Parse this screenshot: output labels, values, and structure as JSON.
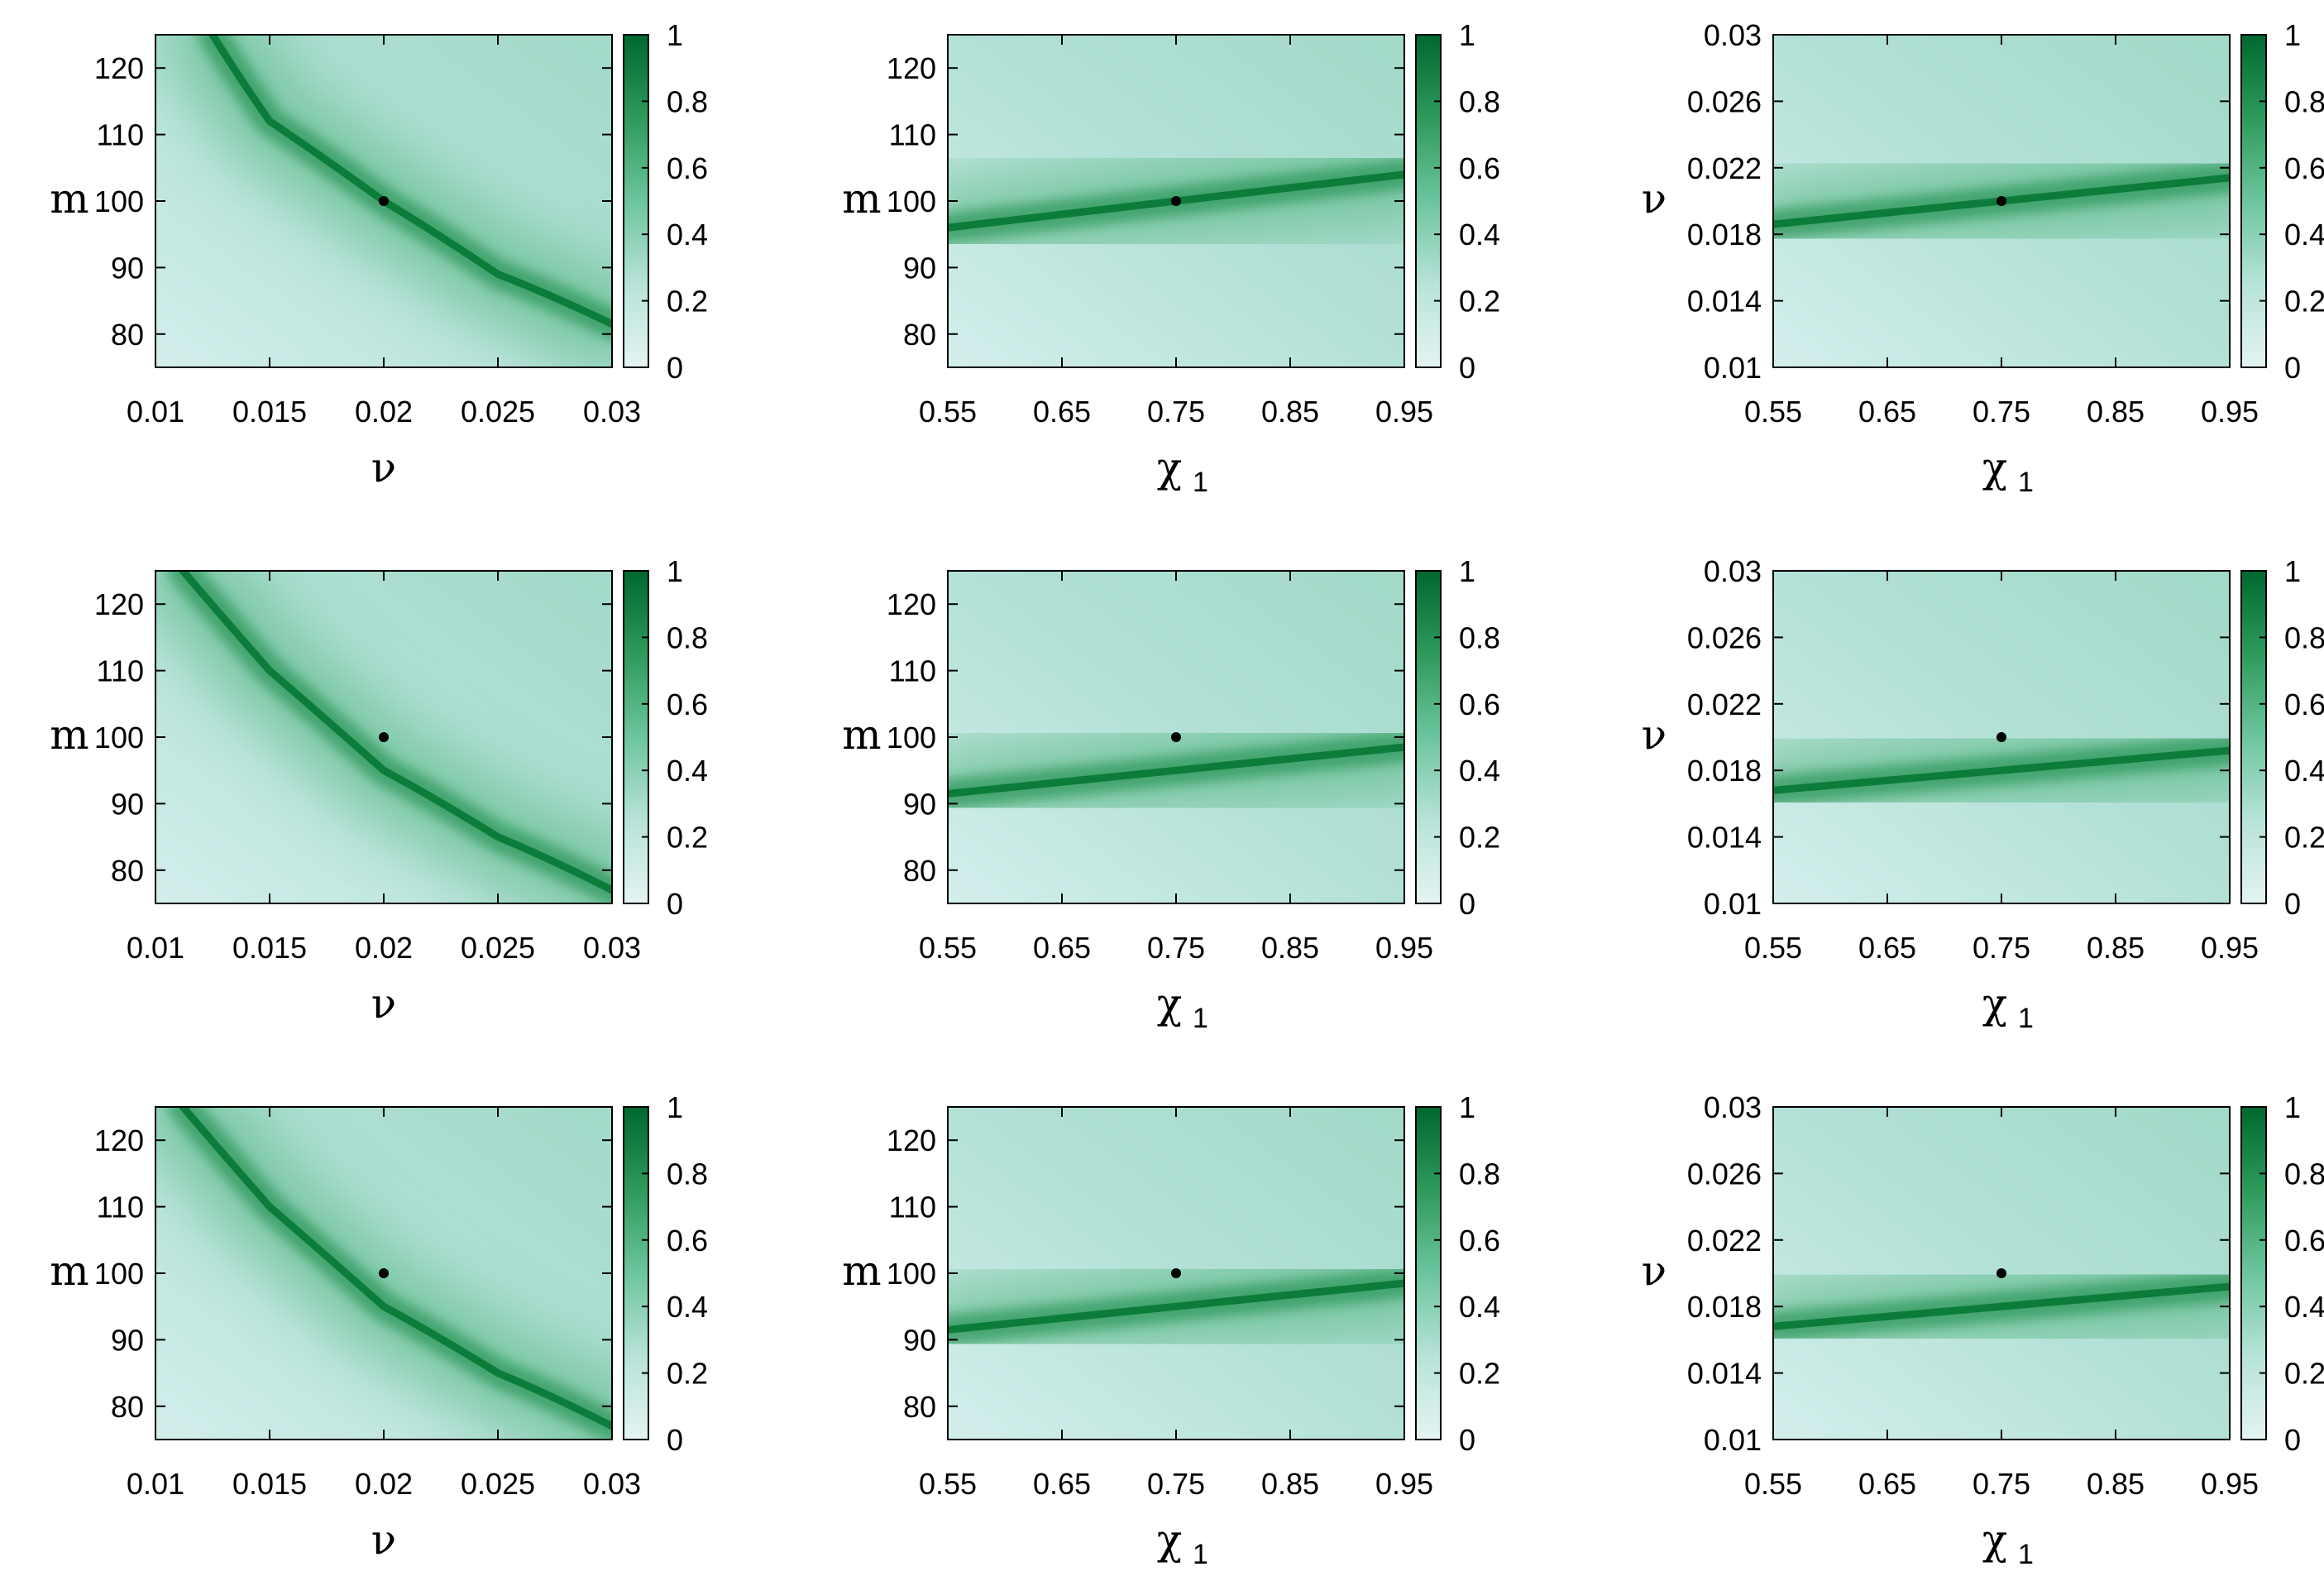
{
  "colors": {
    "colormap": [
      "#e4f4f3",
      "#b7e3d9",
      "#6cc59d",
      "#2e9a5a",
      "#00682e"
    ],
    "ridge": "#0b7c3a",
    "marker": "#000000",
    "frame": "#000000"
  },
  "chart_data": [
    {
      "type": "heatmap",
      "row": 1,
      "col": 1,
      "xlabel": "ν",
      "ylabel": "m",
      "xlim": [
        0.01,
        0.03
      ],
      "ylim": [
        75,
        125
      ],
      "xticks": [
        0.01,
        0.015,
        0.02,
        0.025,
        0.03
      ],
      "xtick_labels": [
        "0.01",
        "0.015",
        "0.02",
        "0.025",
        "0.03"
      ],
      "yticks": [
        80,
        90,
        100,
        110,
        120
      ],
      "ytick_labels": [
        "80",
        "90",
        "100",
        "110",
        "120"
      ],
      "colorbar": {
        "range": [
          0,
          1
        ],
        "tick_labels": [
          "0",
          "0.2",
          "0.4",
          "0.6",
          "0.8",
          "1"
        ]
      },
      "true_point": {
        "x": 0.02,
        "y": 100
      },
      "ridge": {
        "shape": "hyperbola",
        "points": [
          [
            0.0125,
            125
          ],
          [
            0.015,
            112
          ],
          [
            0.02,
            100
          ],
          [
            0.025,
            89
          ],
          [
            0.03,
            81.5
          ]
        ]
      }
    },
    {
      "type": "heatmap",
      "row": 1,
      "col": 2,
      "xlabel": "χ",
      "xlabel_sub": "1",
      "ylabel": "m",
      "xlim": [
        0.55,
        0.95
      ],
      "ylim": [
        75,
        125
      ],
      "xticks": [
        0.55,
        0.65,
        0.75,
        0.85,
        0.95
      ],
      "xtick_labels": [
        "0.55",
        "0.65",
        "0.75",
        "0.85",
        "0.95"
      ],
      "yticks": [
        80,
        90,
        100,
        110,
        120
      ],
      "ytick_labels": [
        "80",
        "90",
        "100",
        "110",
        "120"
      ],
      "colorbar": {
        "range": [
          0,
          1
        ],
        "tick_labels": [
          "0",
          "0.2",
          "0.4",
          "0.6",
          "0.8",
          "1"
        ]
      },
      "true_point": {
        "x": 0.75,
        "y": 100
      },
      "ridge": {
        "shape": "line",
        "points": [
          [
            0.55,
            96
          ],
          [
            0.95,
            104
          ]
        ]
      }
    },
    {
      "type": "heatmap",
      "row": 1,
      "col": 3,
      "xlabel": "χ",
      "xlabel_sub": "1",
      "ylabel": "ν",
      "xlim": [
        0.55,
        0.95
      ],
      "ylim": [
        0.01,
        0.03
      ],
      "xticks": [
        0.55,
        0.65,
        0.75,
        0.85,
        0.95
      ],
      "xtick_labels": [
        "0.55",
        "0.65",
        "0.75",
        "0.85",
        "0.95"
      ],
      "yticks": [
        0.01,
        0.014,
        0.018,
        0.022,
        0.026,
        0.03
      ],
      "ytick_labels": [
        "0.01",
        "0.014",
        "0.018",
        "0.022",
        "0.026",
        "0.03"
      ],
      "colorbar": {
        "range": [
          0,
          1
        ],
        "tick_labels": [
          "0",
          "0.2",
          "0.4",
          "0.6",
          "0.8",
          "1"
        ]
      },
      "true_point": {
        "x": 0.75,
        "y": 0.02
      },
      "ridge": {
        "shape": "line",
        "points": [
          [
            0.55,
            0.0186
          ],
          [
            0.95,
            0.0214
          ]
        ]
      }
    },
    {
      "type": "heatmap",
      "row": 2,
      "col": 1,
      "xlabel": "ν",
      "ylabel": "m",
      "xlim": [
        0.01,
        0.03
      ],
      "ylim": [
        75,
        125
      ],
      "xticks": [
        0.01,
        0.015,
        0.02,
        0.025,
        0.03
      ],
      "xtick_labels": [
        "0.01",
        "0.015",
        "0.02",
        "0.025",
        "0.03"
      ],
      "yticks": [
        80,
        90,
        100,
        110,
        120
      ],
      "ytick_labels": [
        "80",
        "90",
        "100",
        "110",
        "120"
      ],
      "colorbar": {
        "range": [
          0,
          1
        ],
        "tick_labels": [
          "0",
          "0.2",
          "0.4",
          "0.6",
          "0.8",
          "1"
        ]
      },
      "true_point": {
        "x": 0.02,
        "y": 100
      },
      "ridge": {
        "shape": "hyperbola",
        "points": [
          [
            0.0112,
            125
          ],
          [
            0.015,
            110
          ],
          [
            0.02,
            95
          ],
          [
            0.025,
            85
          ],
          [
            0.03,
            77
          ]
        ]
      }
    },
    {
      "type": "heatmap",
      "row": 2,
      "col": 2,
      "xlabel": "χ",
      "xlabel_sub": "1",
      "ylabel": "m",
      "xlim": [
        0.55,
        0.95
      ],
      "ylim": [
        75,
        125
      ],
      "xticks": [
        0.55,
        0.65,
        0.75,
        0.85,
        0.95
      ],
      "xtick_labels": [
        "0.55",
        "0.65",
        "0.75",
        "0.85",
        "0.95"
      ],
      "yticks": [
        80,
        90,
        100,
        110,
        120
      ],
      "ytick_labels": [
        "80",
        "90",
        "100",
        "110",
        "120"
      ],
      "colorbar": {
        "range": [
          0,
          1
        ],
        "tick_labels": [
          "0",
          "0.2",
          "0.4",
          "0.6",
          "0.8",
          "1"
        ]
      },
      "true_point": {
        "x": 0.75,
        "y": 100
      },
      "ridge": {
        "shape": "line",
        "points": [
          [
            0.55,
            91.5
          ],
          [
            0.95,
            98.5
          ]
        ]
      }
    },
    {
      "type": "heatmap",
      "row": 2,
      "col": 3,
      "xlabel": "χ",
      "xlabel_sub": "1",
      "ylabel": "ν",
      "xlim": [
        0.55,
        0.95
      ],
      "ylim": [
        0.01,
        0.03
      ],
      "xticks": [
        0.55,
        0.65,
        0.75,
        0.85,
        0.95
      ],
      "xtick_labels": [
        "0.55",
        "0.65",
        "0.75",
        "0.85",
        "0.95"
      ],
      "yticks": [
        0.01,
        0.014,
        0.018,
        0.022,
        0.026,
        0.03
      ],
      "ytick_labels": [
        "0.01",
        "0.014",
        "0.018",
        "0.022",
        "0.026",
        "0.03"
      ],
      "colorbar": {
        "range": [
          0,
          1
        ],
        "tick_labels": [
          "0",
          "0.2",
          "0.4",
          "0.6",
          "0.8",
          "1"
        ]
      },
      "true_point": {
        "x": 0.75,
        "y": 0.02
      },
      "ridge": {
        "shape": "line",
        "points": [
          [
            0.55,
            0.0168
          ],
          [
            0.95,
            0.0192
          ]
        ]
      }
    },
    {
      "type": "heatmap",
      "row": 3,
      "col": 1,
      "xlabel": "ν",
      "ylabel": "m",
      "xlim": [
        0.01,
        0.03
      ],
      "ylim": [
        75,
        125
      ],
      "xticks": [
        0.01,
        0.015,
        0.02,
        0.025,
        0.03
      ],
      "xtick_labels": [
        "0.01",
        "0.015",
        "0.02",
        "0.025",
        "0.03"
      ],
      "yticks": [
        80,
        90,
        100,
        110,
        120
      ],
      "ytick_labels": [
        "80",
        "90",
        "100",
        "110",
        "120"
      ],
      "colorbar": {
        "range": [
          0,
          1
        ],
        "tick_labels": [
          "0",
          "0.2",
          "0.4",
          "0.6",
          "0.8",
          "1"
        ]
      },
      "true_point": {
        "x": 0.02,
        "y": 100
      },
      "ridge": {
        "shape": "hyperbola",
        "points": [
          [
            0.0112,
            125
          ],
          [
            0.015,
            110
          ],
          [
            0.02,
            95
          ],
          [
            0.025,
            85
          ],
          [
            0.03,
            77
          ]
        ]
      }
    },
    {
      "type": "heatmap",
      "row": 3,
      "col": 2,
      "xlabel": "χ",
      "xlabel_sub": "1",
      "ylabel": "m",
      "xlim": [
        0.55,
        0.95
      ],
      "ylim": [
        75,
        125
      ],
      "xticks": [
        0.55,
        0.65,
        0.75,
        0.85,
        0.95
      ],
      "xtick_labels": [
        "0.55",
        "0.65",
        "0.75",
        "0.85",
        "0.95"
      ],
      "yticks": [
        80,
        90,
        100,
        110,
        120
      ],
      "ytick_labels": [
        "80",
        "90",
        "100",
        "110",
        "120"
      ],
      "colorbar": {
        "range": [
          0,
          1
        ],
        "tick_labels": [
          "0",
          "0.2",
          "0.4",
          "0.6",
          "0.8",
          "1"
        ]
      },
      "true_point": {
        "x": 0.75,
        "y": 100
      },
      "ridge": {
        "shape": "line",
        "points": [
          [
            0.55,
            91.5
          ],
          [
            0.95,
            98.5
          ]
        ]
      }
    },
    {
      "type": "heatmap",
      "row": 3,
      "col": 3,
      "xlabel": "χ",
      "xlabel_sub": "1",
      "ylabel": "ν",
      "xlim": [
        0.55,
        0.95
      ],
      "ylim": [
        0.01,
        0.03
      ],
      "xticks": [
        0.55,
        0.65,
        0.75,
        0.85,
        0.95
      ],
      "xtick_labels": [
        "0.55",
        "0.65",
        "0.75",
        "0.85",
        "0.95"
      ],
      "yticks": [
        0.01,
        0.014,
        0.018,
        0.022,
        0.026,
        0.03
      ],
      "ytick_labels": [
        "0.01",
        "0.014",
        "0.018",
        "0.022",
        "0.026",
        "0.03"
      ],
      "colorbar": {
        "range": [
          0,
          1
        ],
        "tick_labels": [
          "0",
          "0.2",
          "0.4",
          "0.6",
          "0.8",
          "1"
        ]
      },
      "true_point": {
        "x": 0.75,
        "y": 0.02
      },
      "ridge": {
        "shape": "line",
        "points": [
          [
            0.55,
            0.0168
          ],
          [
            0.95,
            0.0192
          ]
        ]
      }
    }
  ]
}
